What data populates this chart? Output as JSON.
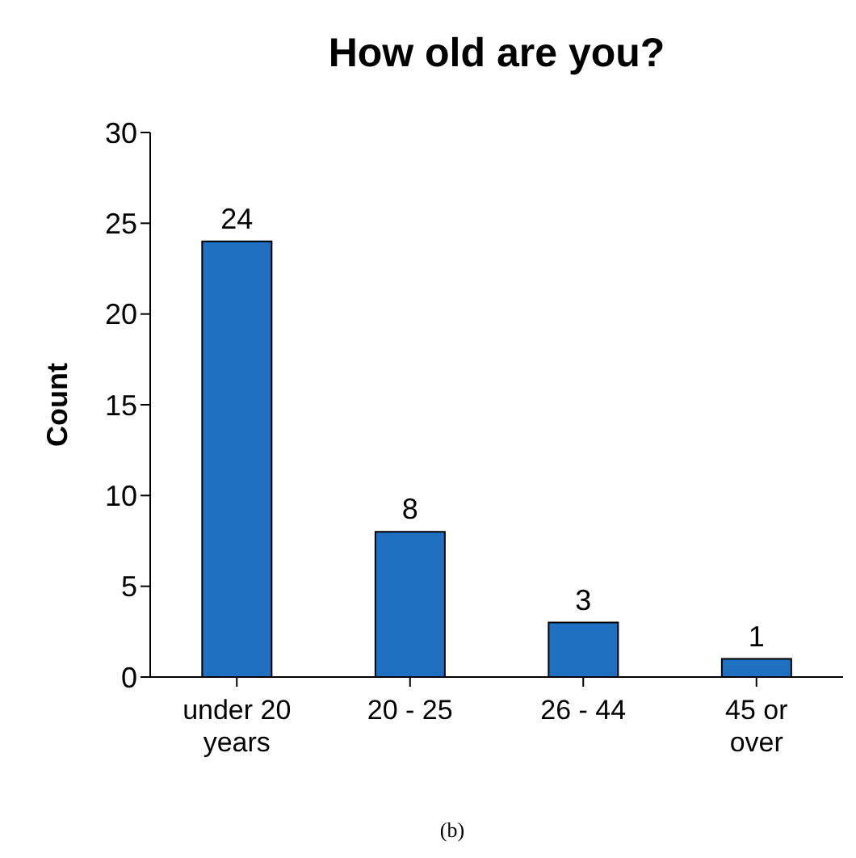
{
  "chart_data": {
    "type": "bar",
    "title": "How old are you?",
    "ylabel": "Count",
    "categories": [
      "under 20 years",
      "20 - 25",
      "26 - 44",
      "45 or over"
    ],
    "values": [
      24,
      8,
      3,
      1
    ],
    "color": "#1f70c1",
    "ylim": [
      0,
      30
    ],
    "yticks": [
      0,
      5,
      10,
      15,
      20,
      25,
      30
    ],
    "data_labels": true,
    "annotations": [
      "(b)"
    ]
  }
}
